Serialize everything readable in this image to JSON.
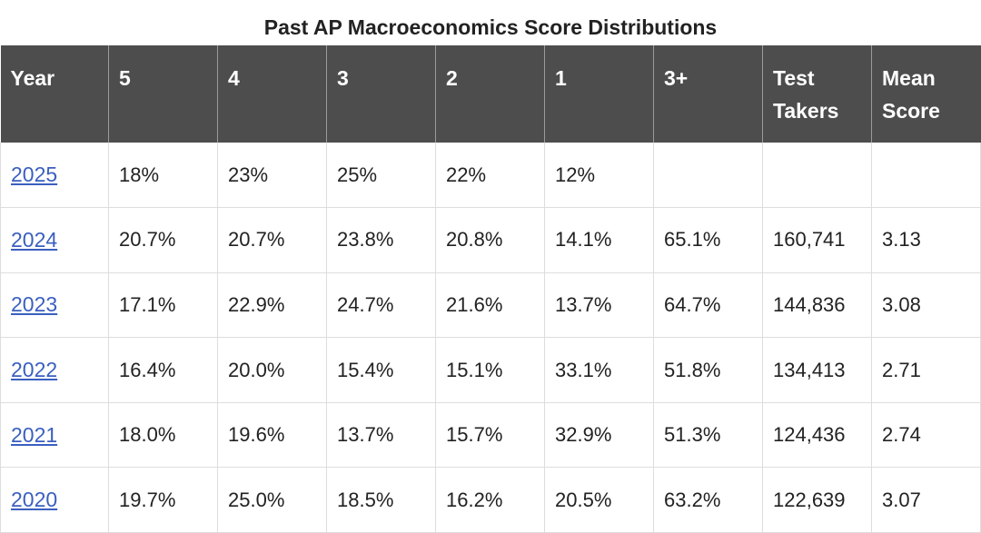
{
  "title": "Past AP Macroeconomics Score Distributions",
  "headers": [
    "Year",
    "5",
    "4",
    "3",
    "2",
    "1",
    "3+",
    "Test Takers",
    "Mean Score"
  ],
  "rows": [
    [
      "2025",
      "18%",
      "23%",
      "25%",
      "22%",
      "12%",
      "",
      "",
      ""
    ],
    [
      "2024",
      "20.7%",
      "20.7%",
      "23.8%",
      "20.8%",
      "14.1%",
      "65.1%",
      "160,741",
      "3.13"
    ],
    [
      "2023",
      "17.1%",
      "22.9%",
      "24.7%",
      "21.6%",
      "13.7%",
      "64.7%",
      "144,836",
      "3.08"
    ],
    [
      "2022",
      "16.4%",
      "20.0%",
      "15.4%",
      "15.1%",
      "33.1%",
      "51.8%",
      "134,413",
      "2.71"
    ],
    [
      "2021",
      "18.0%",
      "19.6%",
      "13.7%",
      "15.7%",
      "32.9%",
      "51.3%",
      "124,436",
      "2.74"
    ],
    [
      "2020",
      "19.7%",
      "25.0%",
      "18.5%",
      "16.2%",
      "20.5%",
      "63.2%",
      "122,639",
      "3.07"
    ]
  ],
  "colors": {
    "header_bg": "#4d4d4d",
    "header_text": "#ffffff",
    "link": "#3a5fbf",
    "grid": "#dddddd"
  }
}
